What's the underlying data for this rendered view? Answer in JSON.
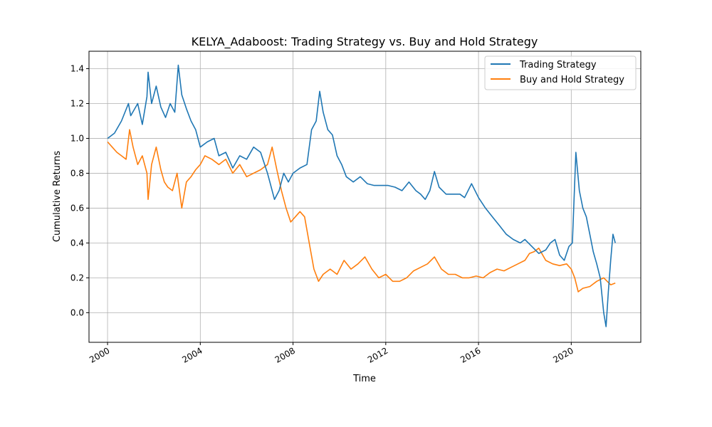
{
  "chart_data": {
    "type": "line",
    "title": "KELYA_Adaboost: Trading Strategy vs. Buy and Hold Strategy",
    "xlabel": "Time",
    "ylabel": "Cumulative Returns",
    "xlim": [
      1999.2,
      2023.0
    ],
    "ylim": [
      -0.17,
      1.5
    ],
    "x_ticks": [
      2000,
      2004,
      2008,
      2012,
      2016,
      2020
    ],
    "x_tick_labels": [
      "2000",
      "2004",
      "2008",
      "2012",
      "2016",
      "2020"
    ],
    "y_ticks": [
      0.0,
      0.2,
      0.4,
      0.6,
      0.8,
      1.0,
      1.2,
      1.4
    ],
    "y_tick_labels": [
      "0.0",
      "0.2",
      "0.4",
      "0.6",
      "0.8",
      "1.0",
      "1.2",
      "1.4"
    ],
    "grid": true,
    "legend_position": "top-right",
    "series": [
      {
        "name": "Trading Strategy",
        "color": "#1f77b4",
        "x": [
          2000.0,
          2000.3,
          2000.6,
          2000.9,
          2001.0,
          2001.3,
          2001.5,
          2001.7,
          2001.75,
          2001.9,
          2002.1,
          2002.3,
          2002.5,
          2002.7,
          2002.9,
          2003.05,
          2003.2,
          2003.4,
          2003.6,
          2003.8,
          2004.0,
          2004.3,
          2004.6,
          2004.8,
          2005.1,
          2005.4,
          2005.7,
          2006.0,
          2006.3,
          2006.6,
          2006.9,
          2007.0,
          2007.2,
          2007.4,
          2007.6,
          2007.8,
          2008.0,
          2008.3,
          2008.6,
          2008.8,
          2009.0,
          2009.15,
          2009.3,
          2009.5,
          2009.7,
          2009.9,
          2010.1,
          2010.3,
          2010.6,
          2010.9,
          2011.2,
          2011.5,
          2011.8,
          2012.1,
          2012.4,
          2012.7,
          2013.0,
          2013.3,
          2013.5,
          2013.7,
          2013.9,
          2014.1,
          2014.3,
          2014.6,
          2014.9,
          2015.2,
          2015.4,
          2015.7,
          2016.0,
          2016.3,
          2016.6,
          2016.9,
          2017.2,
          2017.5,
          2017.8,
          2018.0,
          2018.3,
          2018.6,
          2018.9,
          2019.1,
          2019.3,
          2019.5,
          2019.7,
          2019.9,
          2020.05,
          2020.2,
          2020.35,
          2020.5,
          2020.65,
          2020.8,
          2020.95,
          2021.1,
          2021.25,
          2021.4,
          2021.5,
          2021.6,
          2021.7,
          2021.8,
          2021.9
        ],
        "y": [
          1.0,
          1.03,
          1.1,
          1.2,
          1.13,
          1.2,
          1.08,
          1.24,
          1.38,
          1.2,
          1.3,
          1.18,
          1.12,
          1.2,
          1.15,
          1.42,
          1.25,
          1.17,
          1.1,
          1.05,
          0.95,
          0.98,
          1.0,
          0.9,
          0.92,
          0.83,
          0.9,
          0.88,
          0.95,
          0.92,
          0.8,
          0.75,
          0.65,
          0.7,
          0.8,
          0.75,
          0.8,
          0.83,
          0.85,
          1.05,
          1.1,
          1.27,
          1.15,
          1.05,
          1.02,
          0.9,
          0.85,
          0.78,
          0.75,
          0.78,
          0.74,
          0.73,
          0.73,
          0.73,
          0.72,
          0.7,
          0.75,
          0.7,
          0.68,
          0.65,
          0.7,
          0.81,
          0.72,
          0.68,
          0.68,
          0.68,
          0.66,
          0.74,
          0.66,
          0.6,
          0.55,
          0.5,
          0.45,
          0.42,
          0.4,
          0.42,
          0.38,
          0.34,
          0.36,
          0.4,
          0.42,
          0.33,
          0.3,
          0.38,
          0.4,
          0.92,
          0.7,
          0.6,
          0.55,
          0.45,
          0.35,
          0.28,
          0.2,
          0.0,
          -0.08,
          0.12,
          0.3,
          0.45,
          0.4
        ]
      },
      {
        "name": "Buy and Hold Strategy",
        "color": "#ff7f0e",
        "x": [
          2000.0,
          2000.2,
          2000.4,
          2000.6,
          2000.8,
          2000.95,
          2001.1,
          2001.3,
          2001.5,
          2001.7,
          2001.75,
          2001.9,
          2002.1,
          2002.3,
          2002.45,
          2002.6,
          2002.8,
          2003.0,
          2003.2,
          2003.4,
          2003.6,
          2003.8,
          2004.0,
          2004.2,
          2004.5,
          2004.8,
          2005.1,
          2005.4,
          2005.7,
          2006.0,
          2006.3,
          2006.6,
          2006.9,
          2007.1,
          2007.3,
          2007.5,
          2007.7,
          2007.9,
          2008.1,
          2008.3,
          2008.5,
          2008.7,
          2008.9,
          2009.1,
          2009.3,
          2009.6,
          2009.9,
          2010.2,
          2010.5,
          2010.8,
          2011.1,
          2011.4,
          2011.7,
          2012.0,
          2012.3,
          2012.6,
          2012.9,
          2013.2,
          2013.5,
          2013.8,
          2014.1,
          2014.4,
          2014.7,
          2015.0,
          2015.3,
          2015.6,
          2015.9,
          2016.2,
          2016.5,
          2016.8,
          2017.1,
          2017.4,
          2017.7,
          2018.0,
          2018.2,
          2018.4,
          2018.6,
          2018.9,
          2019.2,
          2019.5,
          2019.8,
          2020.0,
          2020.15,
          2020.3,
          2020.5,
          2020.8,
          2021.1,
          2021.4,
          2021.7,
          2021.9
        ],
        "y": [
          0.98,
          0.95,
          0.92,
          0.9,
          0.88,
          1.05,
          0.95,
          0.85,
          0.9,
          0.8,
          0.65,
          0.85,
          0.95,
          0.82,
          0.75,
          0.72,
          0.7,
          0.8,
          0.6,
          0.75,
          0.78,
          0.82,
          0.85,
          0.9,
          0.88,
          0.85,
          0.88,
          0.8,
          0.85,
          0.78,
          0.8,
          0.82,
          0.85,
          0.95,
          0.82,
          0.7,
          0.6,
          0.52,
          0.55,
          0.58,
          0.55,
          0.4,
          0.25,
          0.18,
          0.22,
          0.25,
          0.22,
          0.3,
          0.25,
          0.28,
          0.32,
          0.25,
          0.2,
          0.22,
          0.18,
          0.18,
          0.2,
          0.24,
          0.26,
          0.28,
          0.32,
          0.25,
          0.22,
          0.22,
          0.2,
          0.2,
          0.21,
          0.2,
          0.23,
          0.25,
          0.24,
          0.26,
          0.28,
          0.3,
          0.34,
          0.35,
          0.37,
          0.3,
          0.28,
          0.27,
          0.28,
          0.25,
          0.2,
          0.12,
          0.14,
          0.15,
          0.18,
          0.2,
          0.16,
          0.17
        ]
      }
    ]
  }
}
